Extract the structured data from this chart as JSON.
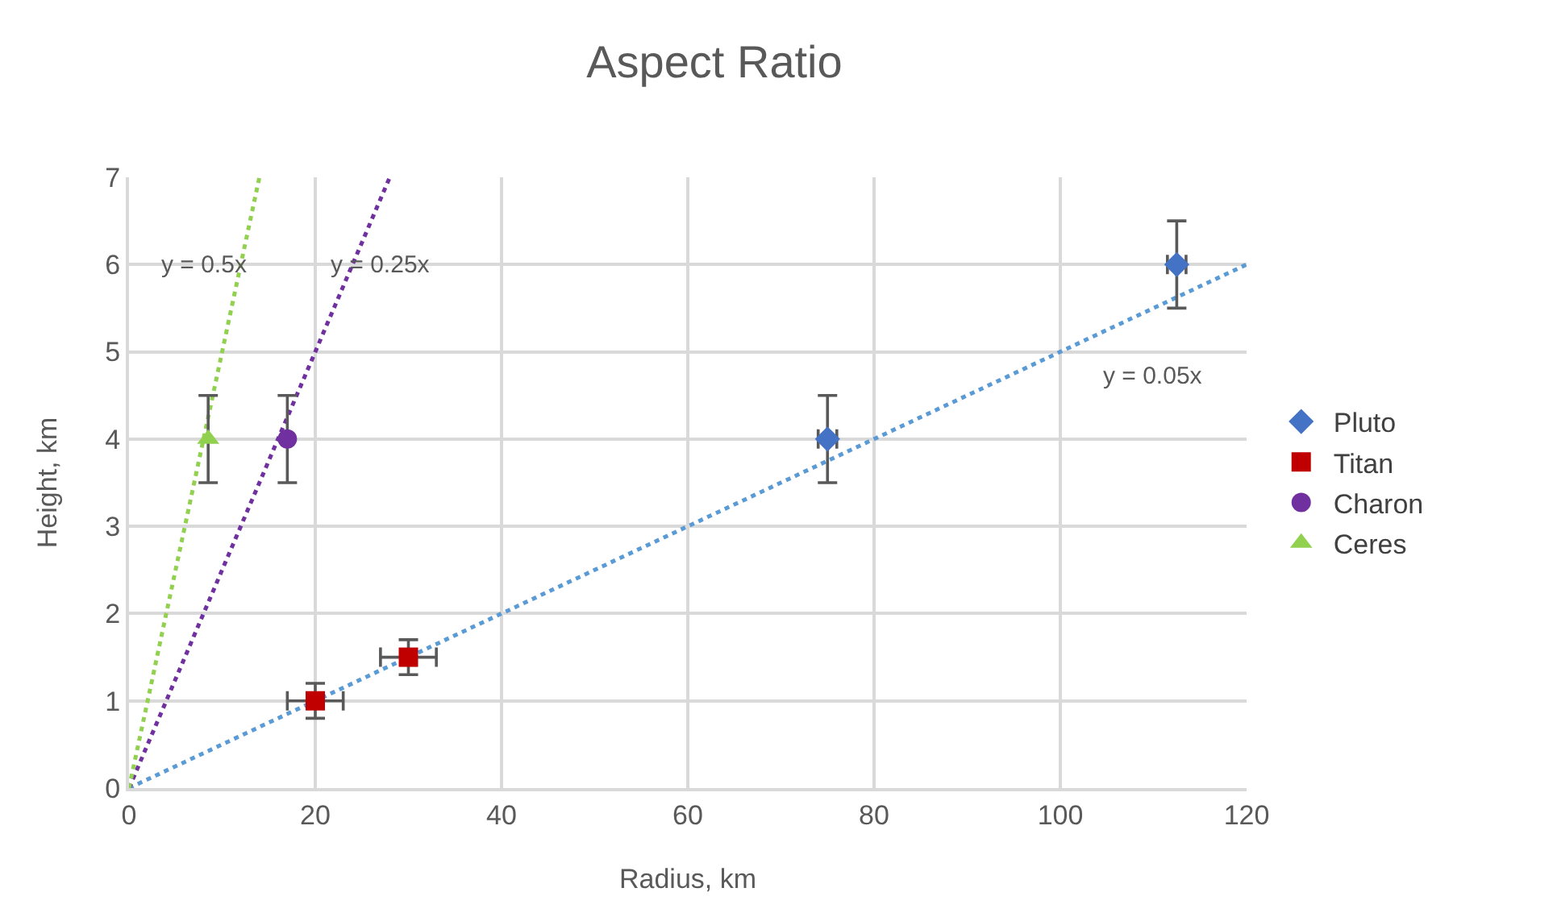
{
  "chart_data": {
    "type": "scatter",
    "title": "Aspect Ratio",
    "xlabel": "Radius, km",
    "ylabel": "Height, km",
    "xlim": [
      0,
      120
    ],
    "xticks": [
      0,
      20,
      40,
      60,
      80,
      100,
      120
    ],
    "ylim": [
      0,
      7
    ],
    "yticks": [
      0,
      1,
      2,
      3,
      4,
      5,
      6,
      7
    ],
    "grid": true,
    "legend": "right",
    "series": [
      {
        "name": "Pluto",
        "color": "#4472c4",
        "marker": "diamond",
        "x": [
          75,
          112.5
        ],
        "values": [
          4,
          6
        ],
        "errors": [
          0.5,
          0.5
        ],
        "xerrors": [
          1,
          1
        ]
      },
      {
        "name": "Titan",
        "color": "#c00000",
        "marker": "square",
        "x": [
          20,
          30
        ],
        "values": [
          1,
          1.5
        ],
        "errors": [
          0.2,
          0.2
        ],
        "xerrors": [
          3,
          3
        ]
      },
      {
        "name": "Charon",
        "color": "#7030a0",
        "marker": "circle",
        "x": [
          17
        ],
        "values": [
          4
        ],
        "errors": [
          0.5
        ]
      },
      {
        "name": "Ceres",
        "color": "#92d050",
        "marker": "triangle",
        "x": [
          8.5
        ],
        "values": [
          4
        ],
        "errors": [
          0.5
        ]
      },
      {
        "type": "line",
        "name": "y = 0.05x",
        "color": "#5b9bd5",
        "line_style": "dotted",
        "marker": "none",
        "x": [
          0,
          120
        ],
        "values": [
          0,
          6
        ]
      },
      {
        "type": "line",
        "name": "y = 0.25x",
        "color": "#7030a0",
        "line_style": "dotted",
        "marker": "none",
        "x": [
          0,
          28
        ],
        "values": [
          0,
          7
        ]
      },
      {
        "type": "line",
        "name": "y = 0.5x",
        "color": "#92d050",
        "line_style": "dotted",
        "marker": "none",
        "x": [
          0,
          14
        ],
        "values": [
          0,
          7
        ]
      }
    ]
  }
}
